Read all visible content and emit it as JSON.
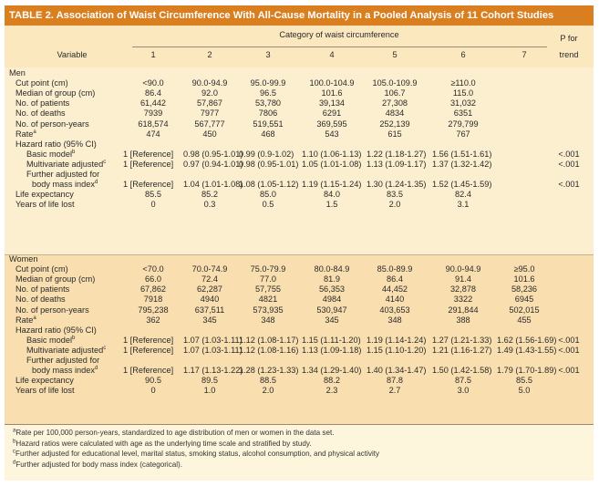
{
  "title": "TABLE 2. Association of Waist Circumference With All-Cause Mortality in a Pooled Analysis of 11 Cohort Studies",
  "header": {
    "category_label": "Category of waist circumference",
    "p_for": "P for",
    "trend": "trend",
    "variable": "Variable",
    "columns": [
      "1",
      "2",
      "3",
      "4",
      "5",
      "6",
      "7"
    ]
  },
  "men": {
    "label": "Men",
    "cut_label": "Cut point (cm)",
    "cut": [
      "<90.0",
      "90.0-94.9",
      "95.0-99.9",
      "100.0-104.9",
      "105.0-109.9",
      "≥110.0"
    ],
    "median_label": "Median of group (cm)",
    "median": [
      "86.4",
      "92.0",
      "96.5",
      "101.6",
      "106.7",
      "115.0"
    ],
    "patients_label": "No. of patients",
    "patients": [
      "61,442",
      "57,867",
      "53,780",
      "39,134",
      "27,308",
      "31,032"
    ],
    "deaths_label": "No. of deaths",
    "deaths": [
      "7939",
      "7977",
      "7806",
      "6291",
      "4834",
      "6351"
    ],
    "py_label": "No. of person-years",
    "py": [
      "618,574",
      "567,777",
      "519,551",
      "369,595",
      "252,139",
      "279,799"
    ],
    "rate_label": "Rate",
    "rate_sup": "a",
    "rate": [
      "474",
      "450",
      "468",
      "543",
      "615",
      "767"
    ],
    "hr_label": "Hazard ratio (95% CI)",
    "basic_label": "Basic model",
    "basic_sup": "b",
    "basic": [
      "1 [Reference]",
      "0.98 (0.95-1.01)",
      "0.99 (0.9-1.02)",
      "1.10 (1.06-1.13)",
      "1.22 (1.18-1.27)",
      "1.56 (1.51-1.61)"
    ],
    "basic_p": "<.001",
    "multi_label": "Multivariate adjusted",
    "multi_sup": "c",
    "multi": [
      "1 [Reference]",
      "0.97 (0.94-1.01)",
      "0.98 (0.95-1.01)",
      "1.05 (1.01-1.08)",
      "1.13 (1.09-1.17)",
      "1.37 (1.32-1.42)"
    ],
    "multi_p": "<.001",
    "further_label": "Further adjusted for",
    "bmi_label": "body mass index",
    "bmi_sup": "d",
    "bmi": [
      "1 [Reference]",
      "1.04 (1.01-1.08)",
      "1.08 (1.05-1.12)",
      "1.19 (1.15-1.24)",
      "1.30 (1.24-1.35)",
      "1.52 (1.45-1.59)"
    ],
    "bmi_p": "<.001",
    "life_label": "Life expectancy",
    "life": [
      "85.5",
      "85.2",
      "85.0",
      "84.0",
      "83.5",
      "82.4"
    ],
    "ylost_label": "Years of life lost",
    "ylost": [
      "0",
      "0.3",
      "0.5",
      "1.5",
      "2.0",
      "3.1"
    ]
  },
  "women": {
    "label": "Women",
    "cut_label": "Cut point (cm)",
    "cut": [
      "<70.0",
      "70.0-74.9",
      "75.0-79.9",
      "80.0-84.9",
      "85.0-89.9",
      "90.0-94.9",
      "≥95.0"
    ],
    "median_label": "Median of group (cm)",
    "median": [
      "66.0",
      "72.4",
      "77.0",
      "81.9",
      "86.4",
      "91.4",
      "101.6"
    ],
    "patients_label": "No. of patients",
    "patients": [
      "67,862",
      "62,287",
      "57,755",
      "56,353",
      "44,452",
      "32,878",
      "58,236"
    ],
    "deaths_label": "No. of deaths",
    "deaths": [
      "7918",
      "4940",
      "4821",
      "4984",
      "4140",
      "3322",
      "6945"
    ],
    "py_label": "No. of person-years",
    "py": [
      "795,238",
      "637,511",
      "573,935",
      "530,947",
      "403,653",
      "291,844",
      "502,015"
    ],
    "rate_label": "Rate",
    "rate_sup": "a",
    "rate": [
      "362",
      "345",
      "348",
      "345",
      "348",
      "388",
      "455"
    ],
    "hr_label": "Hazard ratio (95% CI)",
    "basic_label": "Basic model",
    "basic_sup": "b",
    "basic": [
      "1 [Reference]",
      "1.07 (1.03-1.11)",
      "1.12 (1.08-1.17)",
      "1.15 (1.11-1.20)",
      "1.19 (1.14-1.24)",
      "1.27 (1.21-1.33)",
      "1.62 (1.56-1.69)"
    ],
    "basic_p": "<.001",
    "multi_label": "Multivariate adjusted",
    "multi_sup": "c",
    "multi": [
      "1 [Reference]",
      "1.07 (1.03-1.11)",
      "1.12 (1.08-1.16)",
      "1.13 (1.09-1.18)",
      "1.15 (1.10-1.20)",
      "1.21 (1.16-1.27)",
      "1.49 (1.43-1.55)"
    ],
    "multi_p": "<.001",
    "further_label": "Further adjusted for",
    "bmi_label": "body mass index",
    "bmi_sup": "d",
    "bmi": [
      "1 [Reference]",
      "1.17 (1.13-1.22)",
      "1.28 (1.23-1.33)",
      "1.34 (1.29-1.40)",
      "1.40 (1.34-1.47)",
      "1.50 (1.42-1.58)",
      "1.79 (1.70-1.89)"
    ],
    "bmi_p": "<.001",
    "life_label": "Life expectancy",
    "life": [
      "90.5",
      "89.5",
      "88.5",
      "88.2",
      "87.8",
      "87.5",
      "85.5"
    ],
    "ylost_label": "Years of life lost",
    "ylost": [
      "0",
      "1.0",
      "2.0",
      "2.3",
      "2.7",
      "3.0",
      "5.0"
    ]
  },
  "footnotes": [
    {
      "sup": "a",
      "text": "Rate per 100,000 person-years, standardized to age distribution of men or women in the data set."
    },
    {
      "sup": "b",
      "text": "Hazard ratios were calculated with age as the underlying time scale and stratified by study."
    },
    {
      "sup": "c",
      "text": "Further adjusted for educational level, marital status, smoking status, alcohol consumption, and physical activity"
    },
    {
      "sup": "d",
      "text": "Further adjusted for body mass index (categorical)."
    }
  ]
}
